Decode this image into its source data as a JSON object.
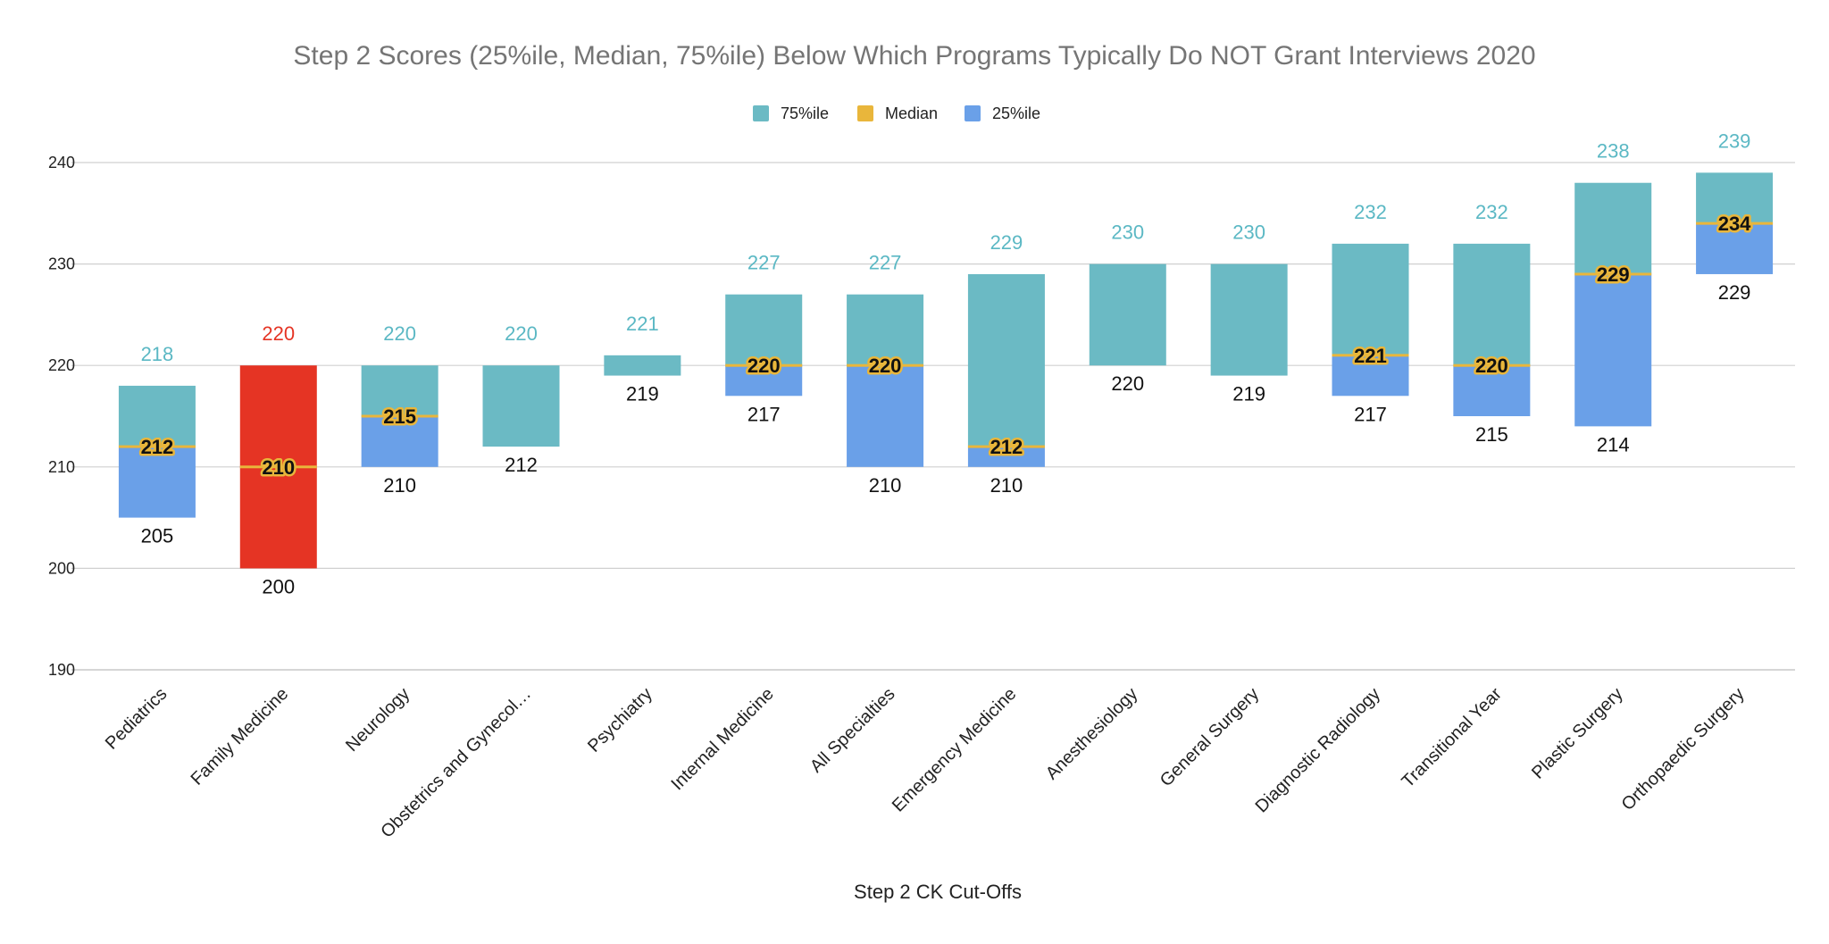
{
  "chart_data": {
    "type": "bar",
    "title": "Step 2 Scores (25%ile, Median, 75%ile) Below Which Programs Typically Do NOT Grant Interviews 2020",
    "xlabel": "Step 2 CK Cut-Offs",
    "ylabel": "",
    "ylim": [
      190,
      240
    ],
    "yticks": [
      190,
      200,
      210,
      220,
      230,
      240
    ],
    "grid": true,
    "legend_position": "top",
    "legend": [
      "75%ile",
      "Median",
      "25%ile"
    ],
    "colors": {
      "p75": "#6bbac4",
      "median": "#e9b63b",
      "p25": "#6aa0e8",
      "highlight": "#e53424",
      "high_label": "#5bb8c4",
      "highlight_label": "#e53424"
    },
    "categories": [
      "Pediatrics",
      "Family Medicine",
      "Neurology",
      "Obstetrics and Gynecol…",
      "Psychiatry",
      "Internal Medicine",
      "All Specialties",
      "Emergency Medicine",
      "Anesthesiology",
      "General Surgery",
      "Diagnostic Radiology",
      "Transitional Year",
      "Plastic Surgery",
      "Orthopaedic Surgery"
    ],
    "highlight_index": 1,
    "series": [
      {
        "name": "25%ile",
        "values": [
          205,
          200,
          210,
          212,
          219,
          217,
          210,
          210,
          220,
          219,
          217,
          215,
          214,
          229
        ]
      },
      {
        "name": "Median",
        "values": [
          212,
          210,
          215,
          null,
          null,
          220,
          220,
          212,
          null,
          null,
          221,
          220,
          229,
          234
        ]
      },
      {
        "name": "75%ile",
        "values": [
          218,
          220,
          220,
          220,
          221,
          227,
          227,
          229,
          230,
          230,
          232,
          232,
          238,
          239
        ]
      }
    ]
  }
}
